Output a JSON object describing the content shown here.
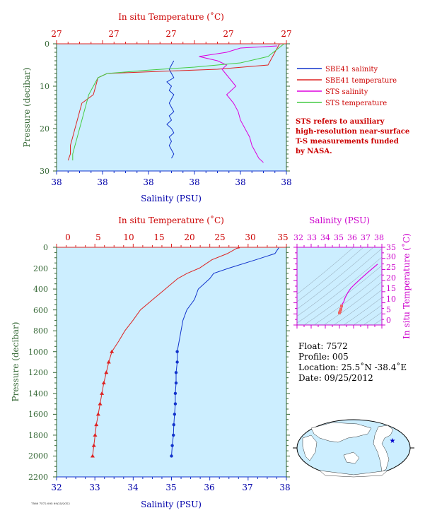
{
  "colors": {
    "plot_bg": "#cceeff",
    "temp": "#dd2222",
    "sal": "#1133cc",
    "sts_sal": "#dd00dd",
    "sts_temp": "#44cc44",
    "green_axis": "#336633",
    "magenta_axis": "#cc00cc",
    "land": "#ffffff",
    "ocean": "#cceeff"
  },
  "top_panel": {
    "top_title": "In situ Temperature (˚C)",
    "bottom_title": "Salinity (PSU)",
    "left_title": "Pressure (decibar)",
    "top_ticks": [
      "27",
      "27",
      "27",
      "27",
      "27"
    ],
    "bottom_ticks": [
      "38",
      "38",
      "38",
      "38",
      "38",
      "38"
    ],
    "left_ticks": [
      "0",
      "10",
      "20",
      "30"
    ],
    "legend": [
      {
        "label": "SBE41 salinity",
        "color": "#1133cc"
      },
      {
        "label": "SBE41 temperature",
        "color": "#dd2222"
      },
      {
        "label": "STS salinity",
        "color": "#dd00dd"
      },
      {
        "label": "STS temperature",
        "color": "#44cc44"
      }
    ],
    "note_lines": [
      "STS refers to auxiliary",
      "high-resolution near-surface",
      "T-S measurements funded",
      "by NASA."
    ]
  },
  "main_panel": {
    "top_title": "In situ Temperature (˚C)",
    "bottom_title": "Salinity (PSU)",
    "left_title": "Pressure (decibar)",
    "top_ticks": [
      "0",
      "5",
      "10",
      "15",
      "20",
      "25",
      "30",
      "35"
    ],
    "bottom_ticks": [
      "32",
      "33",
      "34",
      "35",
      "36",
      "37",
      "38"
    ],
    "left_ticks": [
      "0",
      "200",
      "400",
      "600",
      "800",
      "1000",
      "1200",
      "1400",
      "1600",
      "1800",
      "2000",
      "2200"
    ]
  },
  "ts_panel": {
    "top_title": "Salinity (PSU)",
    "right_title": "In situ Temperature (˚C)",
    "top_ticks": [
      "32",
      "33",
      "34",
      "35",
      "36",
      "37",
      "38"
    ],
    "right_ticks": [
      "0",
      "5",
      "10",
      "15",
      "20",
      "25",
      "30",
      "35"
    ]
  },
  "info": {
    "float_line": "Float:  7572",
    "profile_line": "Profile:  005",
    "location_line": "Location:  25.5˚N  -38.4˚E",
    "date_line": "Date:  09/25/2012"
  },
  "footer_tiny": "7560 7572 005 09/25/2012",
  "chart_data": [
    {
      "type": "line",
      "title": "",
      "xlabel": "Salinity (PSU)",
      "x2label": "In situ Temperature (˚C)",
      "ylabel": "Pressure (decibar)",
      "ylim": [
        0,
        30
      ],
      "y_inverted": true,
      "series": [
        {
          "name": "SBE41 salinity",
          "axis": "salinity",
          "y": [
            4,
            5,
            6,
            7,
            8,
            9,
            10,
            11,
            12,
            13,
            14,
            15,
            16,
            17,
            18,
            19,
            20,
            21,
            22,
            23,
            24,
            25,
            26,
            27
          ],
          "x_frac": [
            0.51,
            0.5,
            0.49,
            0.5,
            0.51,
            0.48,
            0.5,
            0.49,
            0.51,
            0.5,
            0.49,
            0.5,
            0.51,
            0.49,
            0.5,
            0.48,
            0.5,
            0.51,
            0.49,
            0.5,
            0.49,
            0.5,
            0.51,
            0.5
          ]
        },
        {
          "name": "SBE41 temperature",
          "axis": "temperature",
          "y": [
            0,
            5,
            6,
            6.5,
            7,
            8,
            10,
            12,
            14,
            16,
            18,
            20,
            22,
            24,
            26,
            27.5
          ],
          "x_frac": [
            0.97,
            0.92,
            0.7,
            0.45,
            0.22,
            0.18,
            0.17,
            0.16,
            0.11,
            0.1,
            0.09,
            0.08,
            0.07,
            0.06,
            0.06,
            0.05
          ]
        },
        {
          "name": "STS salinity",
          "axis": "salinity",
          "y": [
            0.5,
            1,
            2,
            3,
            4,
            5,
            6,
            8,
            10,
            12,
            14,
            16,
            18,
            20,
            22,
            24,
            26,
            27,
            28
          ],
          "x_frac": [
            0.96,
            0.8,
            0.74,
            0.62,
            0.7,
            0.74,
            0.72,
            0.75,
            0.78,
            0.74,
            0.77,
            0.79,
            0.8,
            0.82,
            0.84,
            0.85,
            0.87,
            0.88,
            0.9
          ]
        },
        {
          "name": "STS temperature",
          "axis": "temperature",
          "y": [
            0,
            3,
            4.5,
            5.5,
            6.2,
            7,
            8,
            10,
            12,
            14,
            16,
            18,
            20,
            22,
            24,
            26,
            27.5
          ],
          "x_frac": [
            0.99,
            0.92,
            0.8,
            0.6,
            0.4,
            0.22,
            0.18,
            0.16,
            0.14,
            0.13,
            0.12,
            0.11,
            0.1,
            0.09,
            0.08,
            0.07,
            0.07
          ]
        }
      ]
    },
    {
      "type": "line",
      "title": "",
      "xlabel": "Salinity (PSU)",
      "x2label": "In situ Temperature (˚C)",
      "ylabel": "Pressure (decibar)",
      "xlim": [
        32,
        38
      ],
      "x2lim": [
        0,
        35
      ],
      "ylim": [
        0,
        2200
      ],
      "y_inverted": true,
      "series": [
        {
          "name": "SBE41 temperature",
          "axis": "temperature",
          "pressure": [
            5,
            10,
            60,
            120,
            200,
            250,
            300,
            400,
            500,
            600,
            700,
            800,
            900,
            1000,
            1100,
            1200,
            1300,
            1400,
            1500,
            1600,
            1700,
            1800,
            1900,
            2000
          ],
          "values": [
            27.5,
            27.0,
            25.5,
            23.0,
            21.0,
            19.0,
            17.5,
            15.5,
            13.5,
            11.5,
            10.3,
            9.0,
            8.0,
            6.9,
            6.4,
            6.0,
            5.6,
            5.3,
            5.0,
            4.7,
            4.4,
            4.2,
            4.0,
            3.8
          ]
        },
        {
          "name": "SBE41 salinity",
          "axis": "salinity",
          "pressure": [
            5,
            60,
            120,
            200,
            250,
            300,
            400,
            500,
            600,
            700,
            800,
            900,
            1000,
            1100,
            1200,
            1300,
            1400,
            1500,
            1600,
            1700,
            1800,
            1900,
            2000
          ],
          "values": [
            37.8,
            37.7,
            37.2,
            36.5,
            36.1,
            36.0,
            35.7,
            35.6,
            35.4,
            35.3,
            35.25,
            35.2,
            35.15,
            35.15,
            35.12,
            35.12,
            35.1,
            35.1,
            35.08,
            35.06,
            35.05,
            35.02,
            35.0
          ]
        }
      ]
    },
    {
      "type": "scatter",
      "title": "",
      "xlabel": "Salinity (PSU)",
      "ylabel": "In situ Temperature (˚C)",
      "xlim": [
        32,
        38
      ],
      "ylim": [
        -2,
        35
      ],
      "series": [
        {
          "name": "",
          "x": [
            35.0,
            35.05,
            35.1,
            35.15,
            35.2,
            35.3,
            35.4,
            35.6,
            35.8,
            36.1,
            36.5,
            37.0,
            37.7
          ],
          "y": [
            3.8,
            4.5,
            5.5,
            7.0,
            8.0,
            9.0,
            11.0,
            13.5,
            15.5,
            17.5,
            20.0,
            23.0,
            27.0
          ]
        }
      ]
    }
  ]
}
